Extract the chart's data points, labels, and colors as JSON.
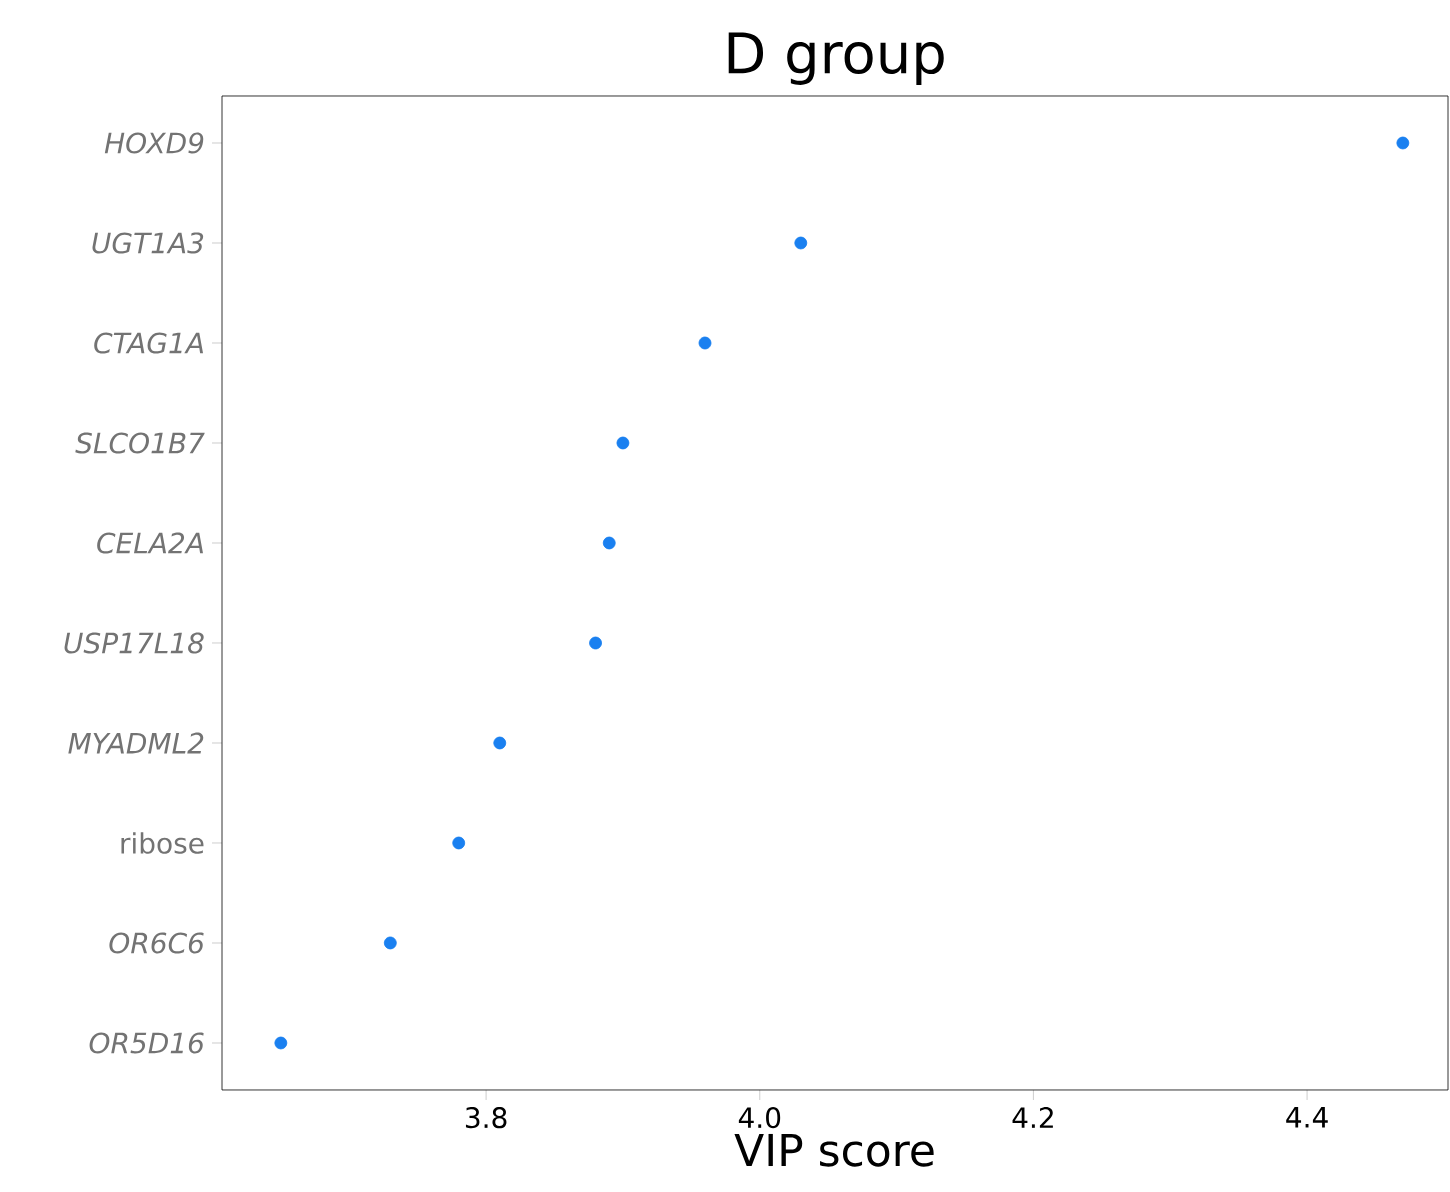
{
  "chart_data": {
    "type": "scatter",
    "title": "D group",
    "xlabel": "VIP score",
    "categories": [
      "*HOXD9*",
      "*UGT1A3*",
      "*CTAG1A*",
      "*SLCO1B7*",
      "*CELA2A*",
      "*USP17L18*",
      "*MYADML2*",
      "ribose",
      "*OR6C6*",
      "*OR5D16*"
    ],
    "series": [
      {
        "color": "#1a80f0",
        "values": [
          4.47,
          4.03,
          3.96,
          3.9,
          3.89,
          3.88,
          3.81,
          3.78,
          3.73,
          3.65
        ]
      }
    ],
    "orientation": "horizontal",
    "xlim": [
      3.607,
      4.503
    ],
    "xticks": [
      3.8,
      {
        "value": 4.0,
        "label": "4.0"
      },
      4.2,
      4.4
    ],
    "marker": "circle",
    "grid": false
  }
}
